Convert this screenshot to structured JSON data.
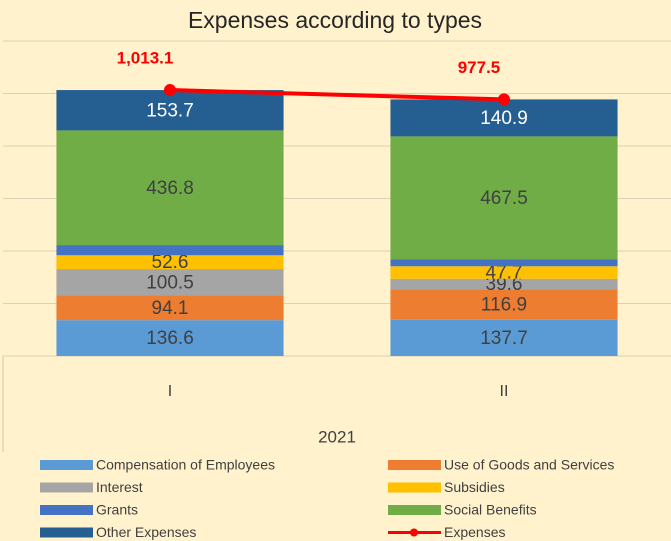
{
  "chart_data": {
    "type": "stacked_bar_line",
    "title": "Expenses according to types",
    "categories": [
      "I",
      "II"
    ],
    "group_label": "2021",
    "ylim": [
      0,
      1200
    ],
    "yticks": [
      0,
      200,
      400,
      600,
      800,
      1000,
      1200
    ],
    "grid": true,
    "series": [
      {
        "name": "Compensation of Employees",
        "color": "#5b9bd5",
        "values": [
          136.6,
          137.7
        ],
        "label_color": "#404040"
      },
      {
        "name": "Use of Goods and Services",
        "color": "#ed7d31",
        "values": [
          94.1,
          116.9
        ],
        "label_color": "#404040"
      },
      {
        "name": "Interest",
        "color": "#a5a5a5",
        "values": [
          100.5,
          39.6
        ],
        "label_color": "#404040"
      },
      {
        "name": "Subsidies",
        "color": "#ffc000",
        "values": [
          52.6,
          47.7
        ],
        "label_color": "#404040"
      },
      {
        "name": "Grants",
        "color": "#4472c4",
        "values": [
          38.8,
          27.2
        ],
        "data_labels": false
      },
      {
        "name": "Social Benefits",
        "color": "#70ad47",
        "values": [
          436.8,
          467.5
        ],
        "label_color": "#404040"
      },
      {
        "name": "Other Expenses",
        "color": "#255e91",
        "values": [
          153.7,
          140.9
        ],
        "label_color": "#ffffff"
      },
      {
        "name": "Expenses",
        "type": "line",
        "color": "#ff0000",
        "values": [
          1013.1,
          977.5
        ],
        "value_labels": [
          "1,013.1",
          "977.5"
        ]
      }
    ]
  }
}
